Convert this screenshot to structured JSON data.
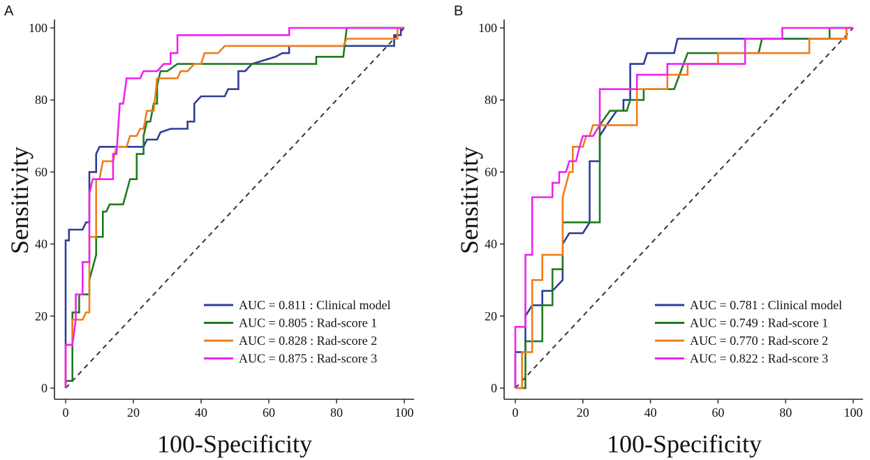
{
  "chart_data": [
    {
      "type": "line",
      "panel": "A",
      "xlabel": "100-Specificity",
      "ylabel": "Sensitivity",
      "xlim": [
        0,
        100
      ],
      "ylim": [
        0,
        100
      ],
      "xticks": [
        0,
        20,
        40,
        60,
        80,
        100
      ],
      "yticks": [
        0,
        20,
        40,
        60,
        80,
        100
      ],
      "reference_line": {
        "style": "dashed",
        "from": [
          0,
          0
        ],
        "to": [
          100,
          100
        ]
      },
      "legend_position": "bottom-right",
      "series": [
        {
          "name": "Clinical model",
          "legend": "AUC = 0.811 : Clinical model",
          "auc": 0.811,
          "color": "#2e3d96",
          "points": [
            [
              0,
              0
            ],
            [
              0,
              41
            ],
            [
              1,
              41
            ],
            [
              1,
              44
            ],
            [
              5,
              44
            ],
            [
              6,
              46
            ],
            [
              7,
              46
            ],
            [
              7,
              60
            ],
            [
              9,
              60
            ],
            [
              9,
              65
            ],
            [
              10,
              67
            ],
            [
              23,
              67
            ],
            [
              24,
              69
            ],
            [
              27,
              69
            ],
            [
              28,
              71
            ],
            [
              31,
              72
            ],
            [
              36,
              72
            ],
            [
              36,
              74
            ],
            [
              38,
              74
            ],
            [
              38,
              79
            ],
            [
              40,
              81
            ],
            [
              47,
              81
            ],
            [
              48,
              83
            ],
            [
              51,
              83
            ],
            [
              51,
              88
            ],
            [
              53,
              88
            ],
            [
              55,
              90
            ],
            [
              62,
              92
            ],
            [
              64,
              93
            ],
            [
              66,
              93
            ],
            [
              66,
              95
            ],
            [
              97,
              95
            ],
            [
              97,
              98
            ],
            [
              99,
              98
            ],
            [
              99,
              100
            ],
            [
              100,
              100
            ]
          ]
        },
        {
          "name": "Rad-score 1",
          "legend": "AUC = 0.805 : Rad-score 1",
          "auc": 0.805,
          "color": "#1f7a1f",
          "points": [
            [
              0,
              0
            ],
            [
              0,
              2
            ],
            [
              2,
              2
            ],
            [
              2,
              21
            ],
            [
              4,
              21
            ],
            [
              4,
              26
            ],
            [
              7,
              26
            ],
            [
              7,
              30
            ],
            [
              9,
              37
            ],
            [
              9,
              42
            ],
            [
              11,
              42
            ],
            [
              11,
              49
            ],
            [
              12,
              49
            ],
            [
              13,
              51
            ],
            [
              17,
              51
            ],
            [
              19,
              58
            ],
            [
              21,
              58
            ],
            [
              21,
              65
            ],
            [
              23,
              65
            ],
            [
              23,
              70
            ],
            [
              24,
              74
            ],
            [
              25,
              74
            ],
            [
              26,
              79
            ],
            [
              27,
              79
            ],
            [
              27,
              84
            ],
            [
              28,
              88
            ],
            [
              30,
              88
            ],
            [
              33,
              90
            ],
            [
              74,
              90
            ],
            [
              74,
              92
            ],
            [
              82,
              92
            ],
            [
              83,
              100
            ],
            [
              100,
              100
            ]
          ]
        },
        {
          "name": "Rad-score 2",
          "legend": "AUC = 0.828 : Rad-score 2",
          "auc": 0.828,
          "color": "#ef7d1a",
          "points": [
            [
              0,
              0
            ],
            [
              0,
              12
            ],
            [
              2,
              12
            ],
            [
              2,
              19
            ],
            [
              5,
              19
            ],
            [
              6,
              21
            ],
            [
              7,
              21
            ],
            [
              7,
              42
            ],
            [
              9,
              42
            ],
            [
              9,
              58
            ],
            [
              10,
              58
            ],
            [
              11,
              63
            ],
            [
              14,
              63
            ],
            [
              15,
              67
            ],
            [
              18,
              67
            ],
            [
              19,
              70
            ],
            [
              21,
              70
            ],
            [
              22,
              72
            ],
            [
              23,
              72
            ],
            [
              24,
              77
            ],
            [
              26,
              77
            ],
            [
              27,
              86
            ],
            [
              33,
              86
            ],
            [
              34,
              88
            ],
            [
              36,
              88
            ],
            [
              38,
              90
            ],
            [
              40,
              90
            ],
            [
              41,
              93
            ],
            [
              45,
              93
            ],
            [
              47,
              95
            ],
            [
              82,
              95
            ],
            [
              83,
              97
            ],
            [
              98,
              97
            ],
            [
              98,
              100
            ],
            [
              100,
              100
            ]
          ]
        },
        {
          "name": "Rad-score 3",
          "legend": "AUC = 0.875 : Rad-score 3",
          "auc": 0.875,
          "color": "#f023f0",
          "points": [
            [
              0,
              0
            ],
            [
              0,
              12
            ],
            [
              2,
              12
            ],
            [
              3,
              19
            ],
            [
              3,
              26
            ],
            [
              5,
              26
            ],
            [
              5,
              35
            ],
            [
              7,
              35
            ],
            [
              7,
              54
            ],
            [
              8,
              58
            ],
            [
              14,
              58
            ],
            [
              14,
              65
            ],
            [
              15,
              65
            ],
            [
              16,
              79
            ],
            [
              17,
              79
            ],
            [
              18,
              86
            ],
            [
              22,
              86
            ],
            [
              23,
              88
            ],
            [
              27,
              88
            ],
            [
              29,
              90
            ],
            [
              31,
              90
            ],
            [
              31,
              93
            ],
            [
              33,
              93
            ],
            [
              33,
              98
            ],
            [
              66,
              98
            ],
            [
              66,
              100
            ],
            [
              100,
              100
            ]
          ]
        }
      ]
    },
    {
      "type": "line",
      "panel": "B",
      "xlabel": "100-Specificity",
      "ylabel": "Sensitivity",
      "xlim": [
        0,
        100
      ],
      "ylim": [
        0,
        100
      ],
      "xticks": [
        0,
        20,
        40,
        60,
        80,
        100
      ],
      "yticks": [
        0,
        20,
        40,
        60,
        80,
        100
      ],
      "reference_line": {
        "style": "dashed",
        "from": [
          0,
          0
        ],
        "to": [
          100,
          100
        ]
      },
      "legend_position": "bottom-right",
      "series": [
        {
          "name": "Clinical model",
          "legend": "AUC = 0.781 : Clinical model",
          "auc": 0.781,
          "color": "#2e3d96",
          "points": [
            [
              0,
              0
            ],
            [
              0,
              10
            ],
            [
              3,
              10
            ],
            [
              3,
              20
            ],
            [
              5,
              23
            ],
            [
              8,
              23
            ],
            [
              8,
              27
            ],
            [
              11,
              27
            ],
            [
              12,
              28
            ],
            [
              14,
              30
            ],
            [
              14,
              40
            ],
            [
              16,
              43
            ],
            [
              20,
              43
            ],
            [
              22,
              46
            ],
            [
              22,
              63
            ],
            [
              25,
              63
            ],
            [
              25,
              70
            ],
            [
              27,
              73
            ],
            [
              30,
              77
            ],
            [
              32,
              77
            ],
            [
              32,
              80
            ],
            [
              34,
              80
            ],
            [
              34,
              90
            ],
            [
              38,
              90
            ],
            [
              39,
              93
            ],
            [
              47,
              93
            ],
            [
              48,
              97
            ],
            [
              98,
              97
            ],
            [
              98,
              100
            ],
            [
              100,
              100
            ]
          ]
        },
        {
          "name": "Rad-score 1",
          "legend": "AUC = 0.749 : Rad-score 1",
          "auc": 0.749,
          "color": "#1f7a1f",
          "points": [
            [
              0,
              0
            ],
            [
              3,
              0
            ],
            [
              3,
              13
            ],
            [
              8,
              13
            ],
            [
              8,
              23
            ],
            [
              11,
              23
            ],
            [
              11,
              33
            ],
            [
              14,
              33
            ],
            [
              14,
              46
            ],
            [
              25,
              46
            ],
            [
              25,
              73
            ],
            [
              28,
              77
            ],
            [
              33,
              77
            ],
            [
              34,
              80
            ],
            [
              38,
              80
            ],
            [
              38,
              83
            ],
            [
              47,
              83
            ],
            [
              51,
              93
            ],
            [
              72,
              93
            ],
            [
              73,
              97
            ],
            [
              93,
              97
            ],
            [
              93,
              100
            ],
            [
              100,
              100
            ]
          ]
        },
        {
          "name": "Rad-score 2",
          "legend": "AUC = 0.770 : Rad-score 2",
          "auc": 0.77,
          "color": "#ef7d1a",
          "points": [
            [
              0,
              0
            ],
            [
              2,
              0
            ],
            [
              2,
              10
            ],
            [
              5,
              10
            ],
            [
              5,
              30
            ],
            [
              8,
              30
            ],
            [
              8,
              37
            ],
            [
              14,
              37
            ],
            [
              14,
              53
            ],
            [
              16,
              60
            ],
            [
              17,
              60
            ],
            [
              17,
              67
            ],
            [
              20,
              67
            ],
            [
              21,
              70
            ],
            [
              22,
              70
            ],
            [
              23,
              73
            ],
            [
              36,
              73
            ],
            [
              36,
              83
            ],
            [
              45,
              83
            ],
            [
              45,
              87
            ],
            [
              51,
              87
            ],
            [
              51,
              90
            ],
            [
              60,
              90
            ],
            [
              60,
              93
            ],
            [
              87,
              93
            ],
            [
              87,
              97
            ],
            [
              98,
              97
            ],
            [
              98,
              100
            ],
            [
              100,
              100
            ]
          ]
        },
        {
          "name": "Rad-score 3",
          "legend": "AUC = 0.822 : Rad-score 3",
          "auc": 0.822,
          "color": "#f023f0",
          "points": [
            [
              0,
              0
            ],
            [
              0,
              17
            ],
            [
              3,
              17
            ],
            [
              3,
              37
            ],
            [
              5,
              37
            ],
            [
              5,
              53
            ],
            [
              11,
              53
            ],
            [
              11,
              57
            ],
            [
              13,
              57
            ],
            [
              13,
              60
            ],
            [
              15,
              60
            ],
            [
              16,
              63
            ],
            [
              18,
              63
            ],
            [
              19,
              67
            ],
            [
              20,
              70
            ],
            [
              23,
              70
            ],
            [
              25,
              73
            ],
            [
              25,
              83
            ],
            [
              36,
              83
            ],
            [
              36,
              87
            ],
            [
              45,
              87
            ],
            [
              45,
              90
            ],
            [
              68,
              90
            ],
            [
              68,
              97
            ],
            [
              79,
              97
            ],
            [
              79,
              100
            ],
            [
              100,
              100
            ]
          ]
        }
      ]
    }
  ]
}
